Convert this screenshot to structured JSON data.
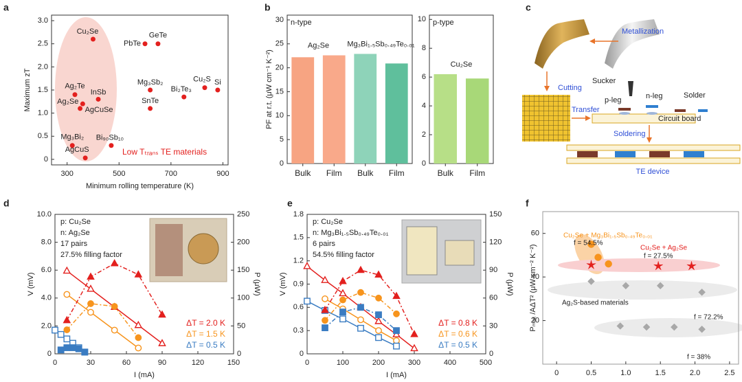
{
  "chart_data": [
    {
      "panel": "a",
      "type": "scatter",
      "color": "#e3201e",
      "xlabel": "Minimum rolling temperature (K)",
      "ylabel": "Maximum zT",
      "annotation": "Low Tₜᵣₐₙₛ TE materials",
      "labels": [
        "Cu₂Se",
        "PbTe",
        "GeTe",
        "Ag₂Te",
        "InSb",
        "Ag₂Se",
        "AgCuSe",
        "Mg₃Sb₂",
        "SnTe",
        "Bi₂Te₃",
        "Cu₂S",
        "Si",
        "Mg₃Bi₂",
        "Bi₉₀Sb₁₀",
        "AgCuS"
      ],
      "x": [
        400,
        600,
        650,
        330,
        420,
        360,
        350,
        620,
        620,
        750,
        830,
        880,
        320,
        470,
        370
      ],
      "values": [
        2.6,
        2.5,
        2.5,
        1.4,
        1.3,
        1.2,
        1.1,
        1.5,
        1.1,
        1.35,
        1.55,
        1.5,
        0.3,
        0.3,
        0.03
      ],
      "xlim": [
        240,
        920
      ],
      "xticks": [
        300,
        500,
        700,
        900
      ],
      "ylim": [
        -0.12,
        3.12
      ],
      "yticks": [
        0,
        0.5,
        {
          "value": 1,
          "label": "1.0"
        },
        1.5,
        {
          "value": 2,
          "label": "2.0"
        },
        2.5,
        {
          "value": 3,
          "label": "3.0"
        }
      ]
    },
    {
      "panel": "b",
      "type": "bar",
      "title": "n-type",
      "ylabel": "PF at r.t. (μW cm⁻¹ K⁻²)",
      "categories": [
        "Bulk",
        "Film",
        "Bulk",
        "Film"
      ],
      "group_labels": [
        "Ag₂Se",
        "Mg₃Bi₁.₅Sb₀.₄₉Te₀.₀₁"
      ],
      "values": [
        22.2,
        22.6,
        22.9,
        20.9
      ],
      "colors": [
        "#f7a482",
        "#f9a98a",
        "#8ed3b9",
        "#5fbf9c"
      ],
      "ylim": [
        0,
        31
      ],
      "yticks": [
        0,
        5,
        10,
        15,
        20,
        25,
        30
      ]
    },
    {
      "type": "bar",
      "title": "p-type",
      "categories": [
        "Bulk",
        "Film"
      ],
      "group_labels": [
        "Cu₂Se"
      ],
      "values": [
        6.2,
        5.9
      ],
      "colors": [
        "#b7df87",
        "#a8d878"
      ],
      "ylim": [
        0,
        10.3
      ],
      "yticks": [
        0,
        2,
        4,
        6,
        8,
        10
      ]
    },
    {
      "panel": "d",
      "type": "line",
      "xlabel": "I (mA)",
      "ylabel": "V (mV)",
      "y2label": "P (μW)",
      "legend": "lower right",
      "notes": [
        "p: Cu₂Se",
        "n: Ag₂Se",
        "17 pairs",
        "27.5% filling factor"
      ],
      "xlim": [
        0,
        150
      ],
      "xticks": [
        0,
        30,
        60,
        90,
        120,
        150
      ],
      "ylim": [
        0,
        10
      ],
      "yticks": [
        0,
        {
          "value": 2,
          "label": "2.0"
        },
        {
          "value": 4,
          "label": "4.0"
        },
        {
          "value": 6,
          "label": "6.0"
        },
        {
          "value": 8,
          "label": "8.0"
        },
        {
          "value": 10,
          "label": "10.0"
        }
      ],
      "y2lim": [
        0,
        250
      ],
      "y2ticks": [
        0,
        50,
        100,
        150,
        200,
        250
      ],
      "series": [
        {
          "name": "ΔT = 2.0 K",
          "color": "#e3201e",
          "marker": "triangle",
          "x": [
            10,
            30,
            50,
            70,
            90
          ],
          "values": [
            5.95,
            4.65,
            3.35,
            2.05,
            0.75
          ]
        },
        {
          "name": "ΔT = 1.5 K",
          "color": "#f7941d",
          "marker": "circle",
          "x": [
            10,
            30,
            50,
            70
          ],
          "values": [
            4.26,
            2.98,
            1.7,
            0.42
          ]
        },
        {
          "name": "ΔT = 0.5 K",
          "color": "#3a7cc2",
          "marker": "square",
          "x": [
            0,
            5,
            10,
            15,
            20,
            25
          ],
          "values": [
            1.7,
            1.39,
            1.07,
            0.76,
            0.44,
            0.13
          ]
        },
        {
          "axis": "y2",
          "color": "#e3201e",
          "marker": "triangle",
          "x": [
            10,
            30,
            50,
            70,
            90
          ],
          "values": [
            60,
            138,
            162,
            142,
            70
          ]
        },
        {
          "axis": "y2",
          "color": "#f7941d",
          "marker": "circle",
          "x": [
            10,
            30,
            50,
            70
          ],
          "values": [
            43,
            90,
            85,
            29
          ]
        },
        {
          "axis": "y2",
          "color": "#3a7cc2",
          "marker": "square",
          "x": [
            5,
            10,
            15,
            20,
            25
          ],
          "values": [
            7,
            11,
            11,
            9,
            3
          ]
        }
      ]
    },
    {
      "panel": "e",
      "type": "line",
      "xlabel": "I (mA)",
      "ylabel": "V (mV)",
      "y2label": "P (μW)",
      "legend": "lower right",
      "notes": [
        "p: Cu₂Se",
        "n: Mg₃Bi₁.₅Sb₀.₄₉Te₀.₀₁",
        "6 pairs",
        "54.5% filling factor"
      ],
      "xlim": [
        0,
        500
      ],
      "xticks": [
        0,
        100,
        200,
        300,
        400,
        500
      ],
      "ylim": [
        0,
        1.8
      ],
      "yticks": [
        0,
        0.3,
        0.6,
        0.9,
        1.2,
        1.5,
        1.8
      ],
      "y2lim": [
        0,
        150
      ],
      "y2ticks": [
        0,
        30,
        60,
        90,
        120,
        150
      ],
      "series": [
        {
          "name": "ΔT = 0.8 K",
          "color": "#e3201e",
          "marker": "triangle",
          "x": [
            0,
            50,
            100,
            150,
            200,
            250,
            300
          ],
          "values": [
            1.13,
            0.95,
            0.78,
            0.6,
            0.42,
            0.25,
            0.07
          ]
        },
        {
          "name": "ΔT = 0.6 K",
          "color": "#f7941d",
          "marker": "circle",
          "x": [
            50,
            100,
            150,
            200,
            250
          ],
          "values": [
            0.71,
            0.58,
            0.44,
            0.3,
            0.17
          ]
        },
        {
          "name": "ΔT = 0.5 K",
          "color": "#3a7cc2",
          "marker": "square",
          "x": [
            0,
            50,
            100,
            150,
            200,
            250
          ],
          "values": [
            0.68,
            0.56,
            0.45,
            0.33,
            0.21,
            0.1
          ]
        },
        {
          "axis": "y2",
          "color": "#e3201e",
          "marker": "triangle",
          "x": [
            50,
            100,
            150,
            200,
            250,
            300
          ],
          "values": [
            47,
            78,
            90,
            85,
            62,
            21
          ]
        },
        {
          "axis": "y2",
          "color": "#f7941d",
          "marker": "circle",
          "x": [
            50,
            100,
            150,
            200,
            250
          ],
          "values": [
            36,
            58,
            66,
            60,
            43
          ]
        },
        {
          "axis": "y2",
          "color": "#3a7cc2",
          "marker": "square",
          "x": [
            50,
            100,
            150,
            200,
            250
          ],
          "values": [
            28,
            45,
            50,
            42,
            25
          ]
        }
      ]
    },
    {
      "panel": "f",
      "type": "scatter",
      "xlabel": "ΔT (K)",
      "ylabel": "Pₘₐₓ /AΔT² (μW cm⁻² K⁻²)",
      "xlim": [
        -0.2,
        2.63
      ],
      "xticks": [
        0,
        0.5,
        {
          "value": 1,
          "label": "1.0"
        },
        1.5,
        {
          "value": 2,
          "label": "2.0"
        },
        2.5
      ],
      "ylim": [
        0,
        70
      ],
      "yticks": [
        20,
        40,
        60
      ],
      "series": [
        {
          "name": "Cu₂Se + Mg₃Bi₁.₅Sb₀.₄₉Te₀.₀₁",
          "color": "#f7941d",
          "marker": "circle",
          "annotation": "f = 54.5%",
          "x": [
            0.5,
            0.6,
            0.75
          ],
          "values": [
            55,
            49,
            46
          ]
        },
        {
          "name": "Cu₂Se + Ag₂Se",
          "color": "#e3201e",
          "marker": "star",
          "annotation": "f = 27.5%",
          "x": [
            0.5,
            1.47,
            1.95
          ],
          "values": [
            45.5,
            45,
            45
          ]
        },
        {
          "name": "Ag₂S-based materials",
          "color": "#a8a8a8",
          "marker": "diamond",
          "annotation": "f = 72.2%",
          "x": [
            0.5,
            1.0,
            1.5,
            2.1
          ],
          "values": [
            38,
            36,
            36,
            33
          ]
        },
        {
          "color": "#a8a8a8",
          "marker": "diamond",
          "annotation": "f = 38%",
          "x": [
            0.92,
            1.3,
            1.7,
            2.1
          ],
          "values": [
            17.5,
            17,
            17,
            16
          ]
        }
      ]
    }
  ],
  "diagram": {
    "panel": "c",
    "metallization": "Metallization",
    "cutting": "Cutting",
    "sucker": "Sucker",
    "p_leg": "p-leg",
    "n_leg": "n-leg",
    "solder": "Solder",
    "transfer": "Transfer",
    "circuit_board": "Circuit board",
    "soldering": "Soldering",
    "te_device": "TE device"
  }
}
